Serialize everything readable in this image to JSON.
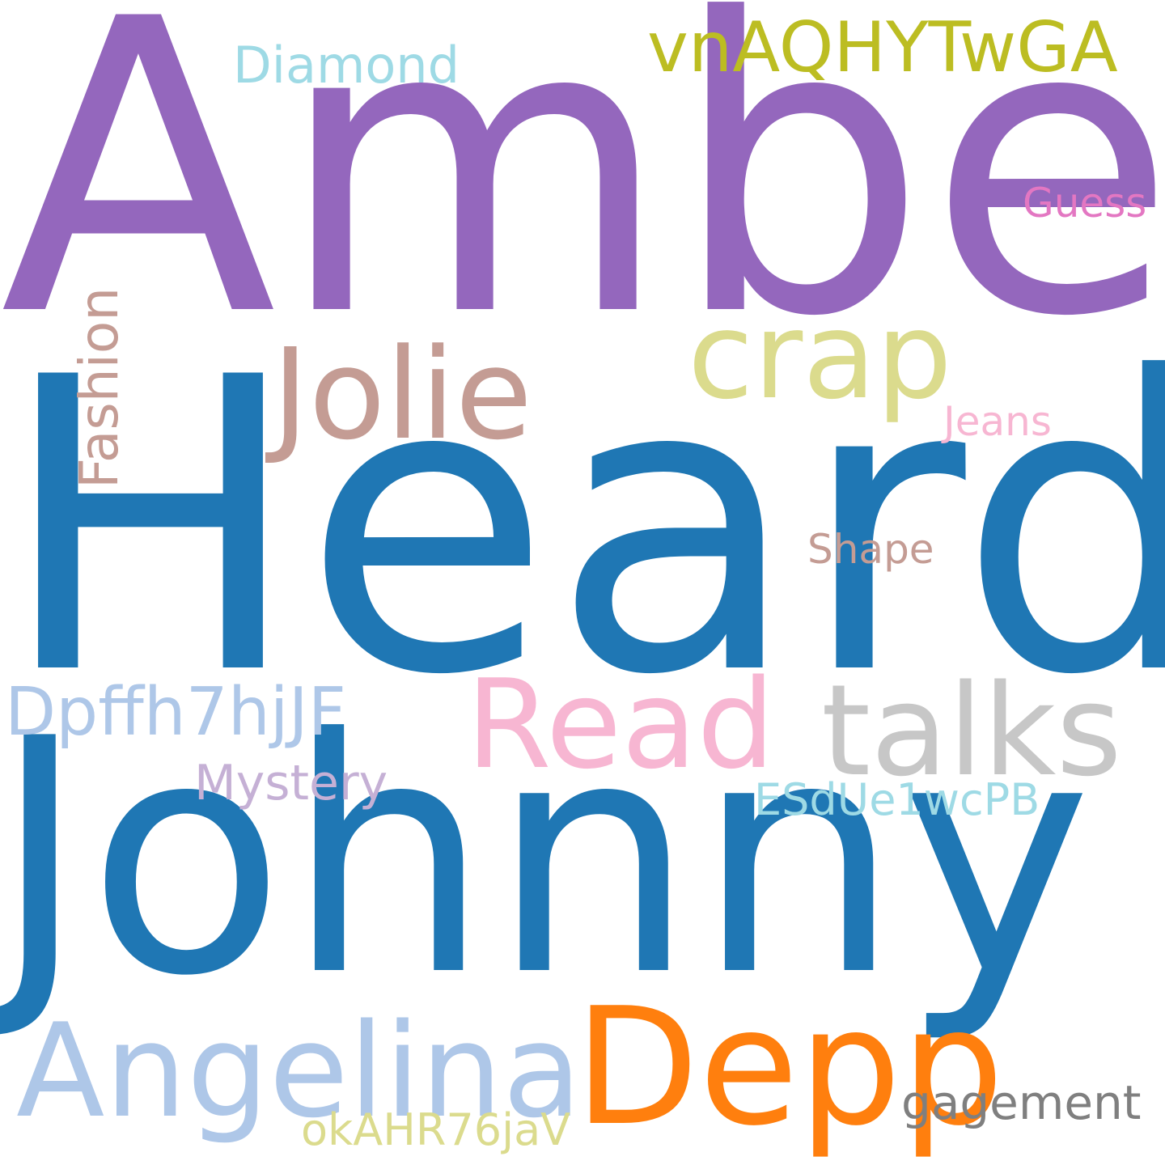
{
  "colors": {
    "background": "#ffffff",
    "purple": "#9467bd",
    "blue": "#1f77b4",
    "orange": "#ff7f0e",
    "olive": "#bcbd22",
    "light_olive": "#dbdb8d",
    "light_blue": "#aec7e8",
    "cyan": "#9edae5",
    "pink": "#e377c2",
    "light_pink": "#f7b6d2",
    "brown": "#c49c94",
    "light_purple": "#c5b0d5",
    "gray": "#7f7f7f",
    "light_gray": "#c7c7c7"
  },
  "words": [
    {
      "key": "amber",
      "text": "Amber",
      "color": "#9467bd"
    },
    {
      "key": "heard",
      "text": "Heard",
      "color": "#1f77b4"
    },
    {
      "key": "johnny",
      "text": "Johnny",
      "color": "#1f77b4"
    },
    {
      "key": "depp",
      "text": "Depp",
      "color": "#ff7f0e"
    },
    {
      "key": "angelina",
      "text": "Angelina",
      "color": "#aec7e8"
    },
    {
      "key": "jolie",
      "text": "Jolie",
      "color": "#c49c94"
    },
    {
      "key": "crap",
      "text": "crap",
      "color": "#dbdb8d"
    },
    {
      "key": "talks",
      "text": "talks",
      "color": "#c7c7c7"
    },
    {
      "key": "read",
      "text": "Read",
      "color": "#f7b6d2"
    },
    {
      "key": "vnaqhytwga",
      "text": "vnAQHYTwGA",
      "color": "#bcbd22"
    },
    {
      "key": "diamond",
      "text": "Diamond",
      "color": "#9edae5"
    },
    {
      "key": "guess",
      "text": "Guess",
      "color": "#e377c2"
    },
    {
      "key": "jeans",
      "text": "Jeans",
      "color": "#f7b6d2"
    },
    {
      "key": "shape",
      "text": "Shape",
      "color": "#c49c94"
    },
    {
      "key": "fashion",
      "text": "Fashion",
      "color": "#c49c94"
    },
    {
      "key": "dpffh7hjjf",
      "text": "Dpffh7hjJF",
      "color": "#aec7e8"
    },
    {
      "key": "mystery",
      "text": "Mystery",
      "color": "#c5b0d5"
    },
    {
      "key": "esdue1wcpb",
      "text": "ESdUe1wcPB",
      "color": "#9edae5"
    },
    {
      "key": "gagement",
      "text": "gagement",
      "color": "#7f7f7f"
    },
    {
      "key": "okahr76jav",
      "text": "okAHR76jaV",
      "color": "#dbdb8d"
    }
  ]
}
